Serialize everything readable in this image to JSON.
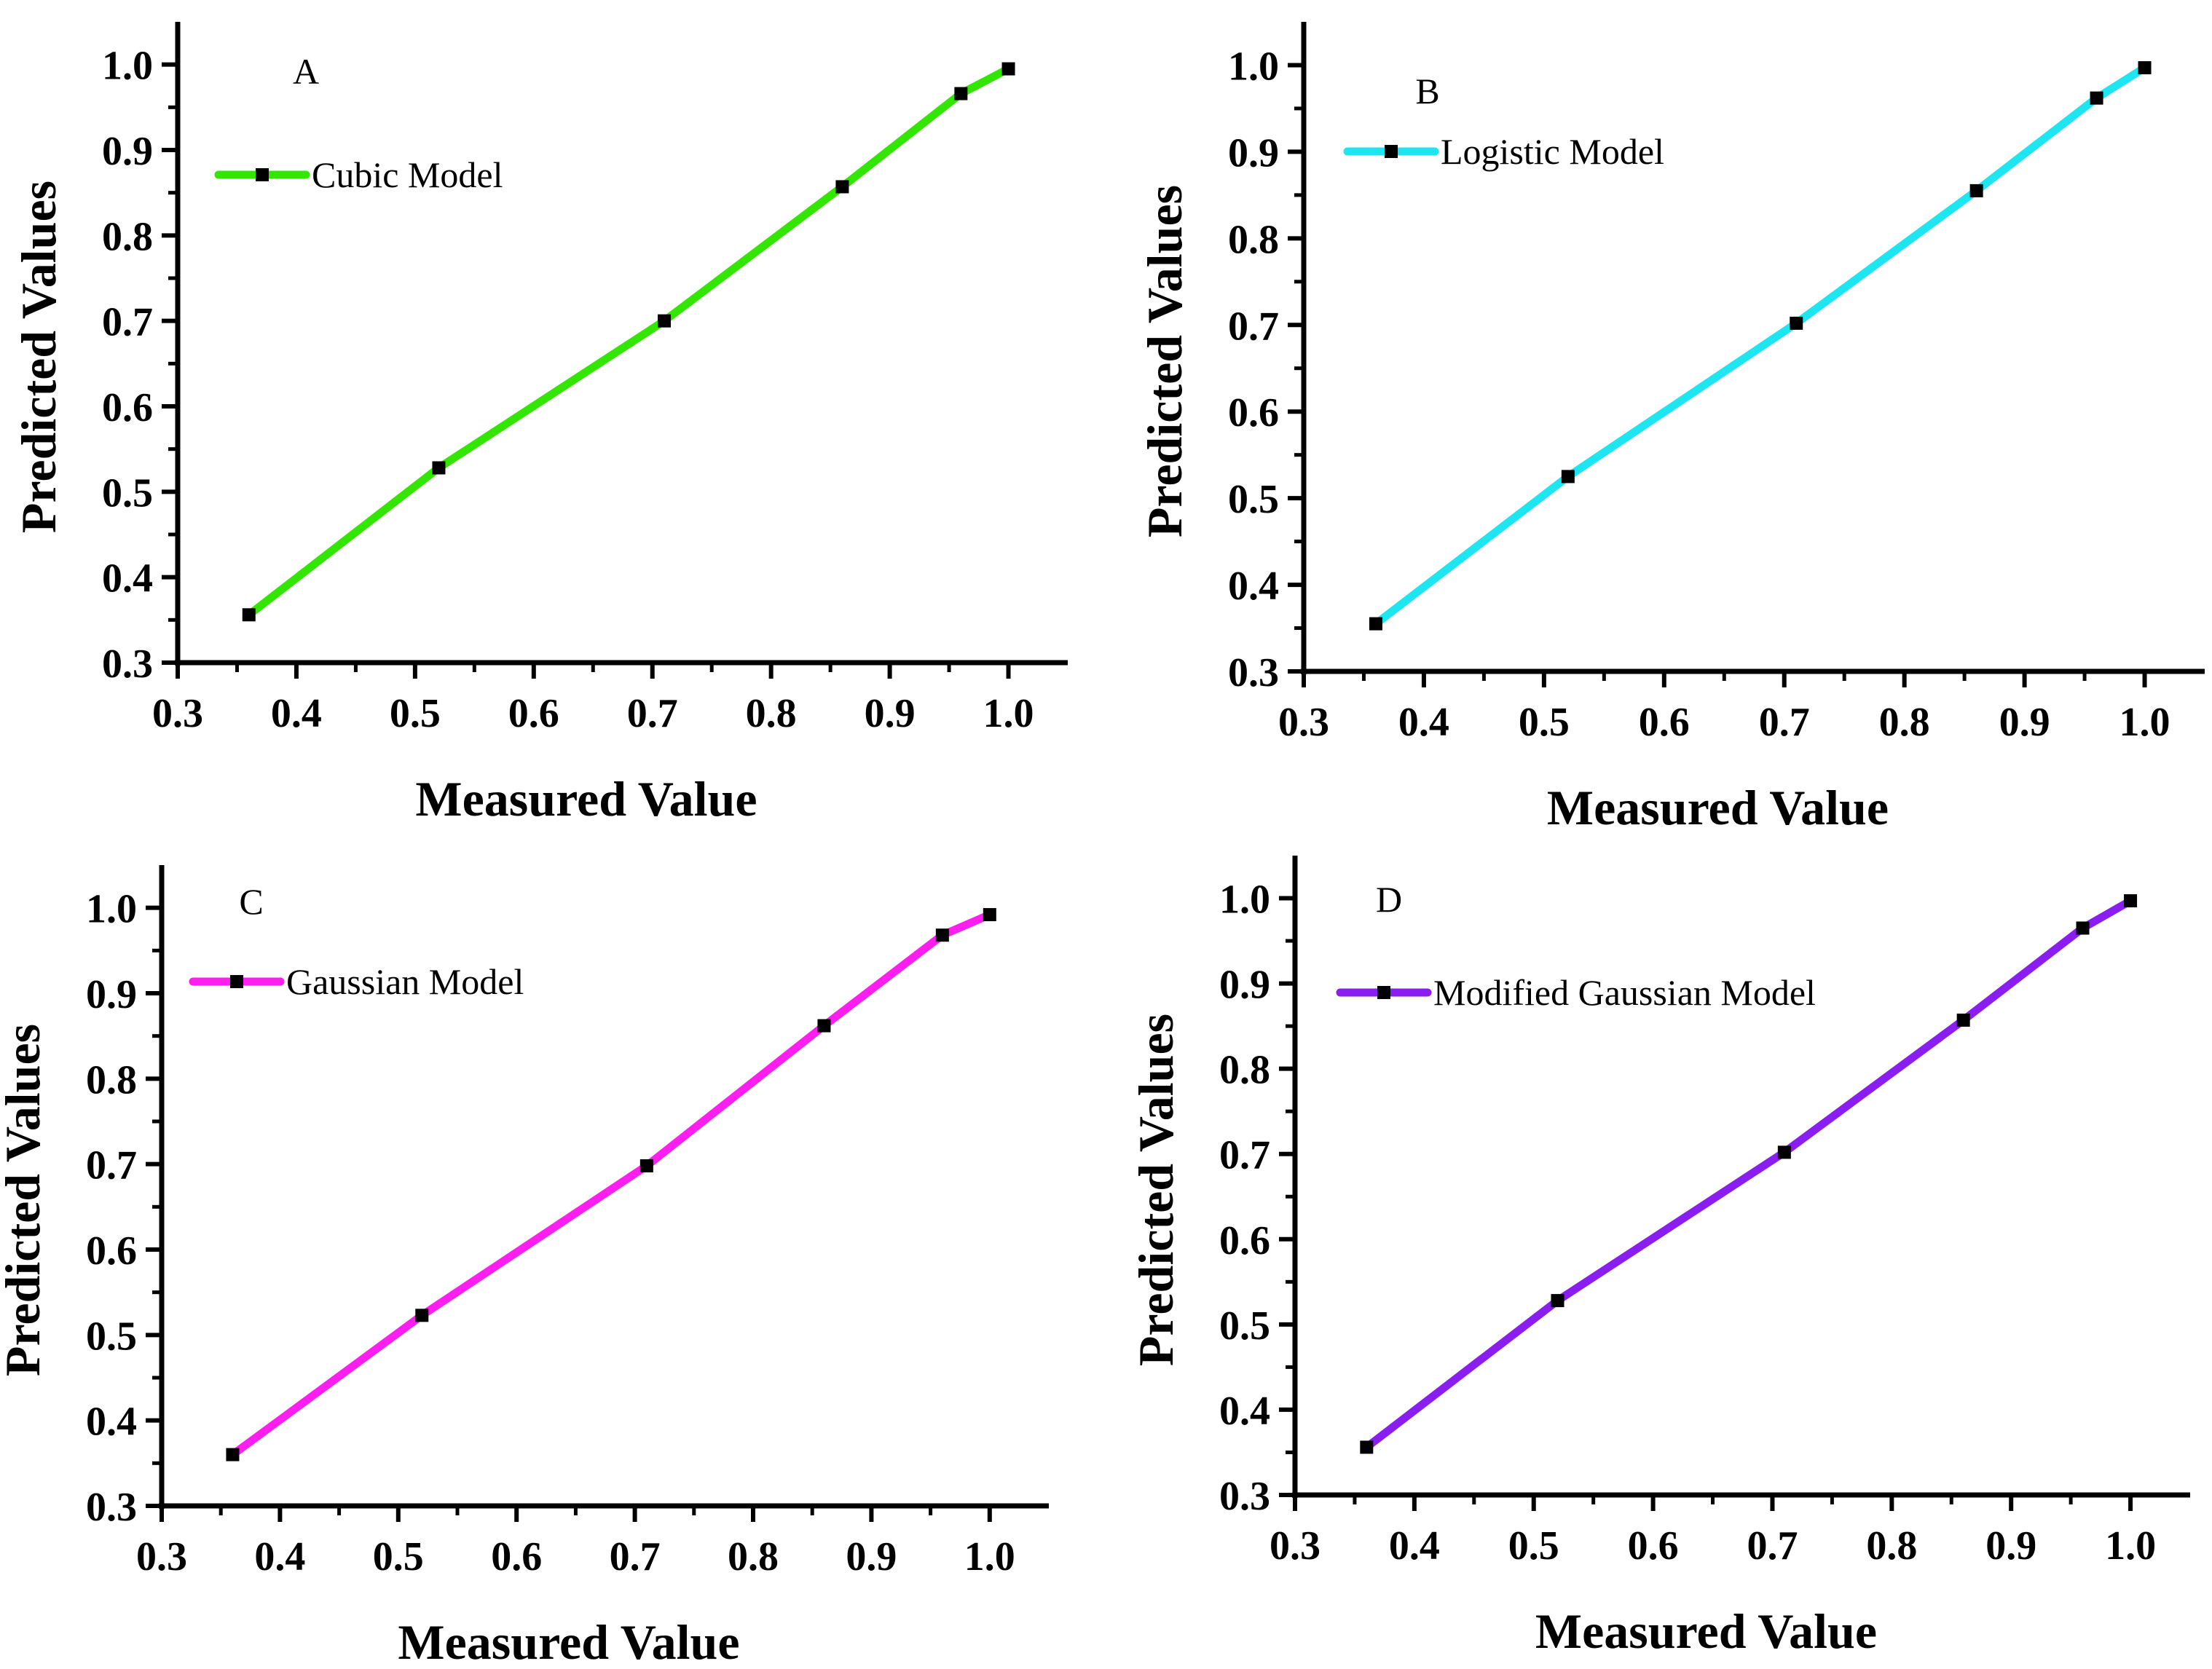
{
  "chart_data": [
    {
      "type": "line",
      "panel_label": "A",
      "xlabel": "Measured Value",
      "ylabel": "Predicted Values",
      "xlim": [
        0.3,
        1.05
      ],
      "ylim": [
        0.3,
        1.05
      ],
      "xticks": [
        "0.3",
        "0.4",
        "0.5",
        "0.6",
        "0.7",
        "0.8",
        "0.9",
        "1.0"
      ],
      "yticks": [
        "0.3",
        "0.4",
        "0.5",
        "0.6",
        "0.7",
        "0.8",
        "0.9",
        "1.0"
      ],
      "legend": "Cubic Model",
      "legend_position": "top-left",
      "grid": false,
      "color": "#33e600",
      "marker_color": "#000000",
      "x": [
        0.36,
        0.52,
        0.71,
        0.86,
        0.96,
        1.0
      ],
      "y": [
        0.356,
        0.528,
        0.7,
        0.857,
        0.966,
        0.995
      ]
    },
    {
      "type": "line",
      "panel_label": "B",
      "xlabel": "Measured Value",
      "ylabel": "Predicted Values",
      "xlim": [
        0.3,
        1.05
      ],
      "ylim": [
        0.3,
        1.05
      ],
      "xticks": [
        "0.3",
        "0.4",
        "0.5",
        "0.6",
        "0.7",
        "0.8",
        "0.9",
        "1.0"
      ],
      "yticks": [
        "0.3",
        "0.4",
        "0.5",
        "0.6",
        "0.7",
        "0.8",
        "0.9",
        "1.0"
      ],
      "legend": "Logistic Model",
      "legend_position": "top-left",
      "grid": false,
      "color": "#1ee6f0",
      "marker_color": "#000000",
      "x": [
        0.36,
        0.52,
        0.71,
        0.86,
        0.96,
        1.0
      ],
      "y": [
        0.355,
        0.525,
        0.702,
        0.855,
        0.962,
        0.997
      ]
    },
    {
      "type": "line",
      "panel_label": "C",
      "xlabel": "Measured Value",
      "ylabel": "Predicted Values",
      "xlim": [
        0.3,
        1.05
      ],
      "ylim": [
        0.3,
        1.05
      ],
      "xticks": [
        "0.3",
        "0.4",
        "0.5",
        "0.6",
        "0.7",
        "0.8",
        "0.9",
        "1.0"
      ],
      "yticks": [
        "0.3",
        "0.4",
        "0.5",
        "0.6",
        "0.7",
        "0.8",
        "0.9",
        "1.0"
      ],
      "legend": "Gaussian Model",
      "legend_position": "top-left",
      "grid": false,
      "color": "#ff1ef0",
      "marker_color": "#000000",
      "x": [
        0.36,
        0.52,
        0.71,
        0.86,
        0.96,
        1.0
      ],
      "y": [
        0.36,
        0.523,
        0.698,
        0.862,
        0.968,
        0.992
      ]
    },
    {
      "type": "line",
      "panel_label": "D",
      "xlabel": "Measured Value",
      "ylabel": "Predicted Values",
      "xlim": [
        0.3,
        1.05
      ],
      "ylim": [
        0.3,
        1.05
      ],
      "xticks": [
        "0.3",
        "0.4",
        "0.5",
        "0.6",
        "0.7",
        "0.8",
        "0.9",
        "1.0"
      ],
      "yticks": [
        "0.3",
        "0.4",
        "0.5",
        "0.6",
        "0.7",
        "0.8",
        "0.9",
        "1.0"
      ],
      "legend": "Modified Gaussian Model",
      "legend_position": "top-left",
      "grid": false,
      "color": "#8a1ef0",
      "marker_color": "#000000",
      "x": [
        0.36,
        0.52,
        0.71,
        0.86,
        0.96,
        1.0
      ],
      "y": [
        0.356,
        0.528,
        0.702,
        0.857,
        0.965,
        0.997
      ]
    }
  ]
}
